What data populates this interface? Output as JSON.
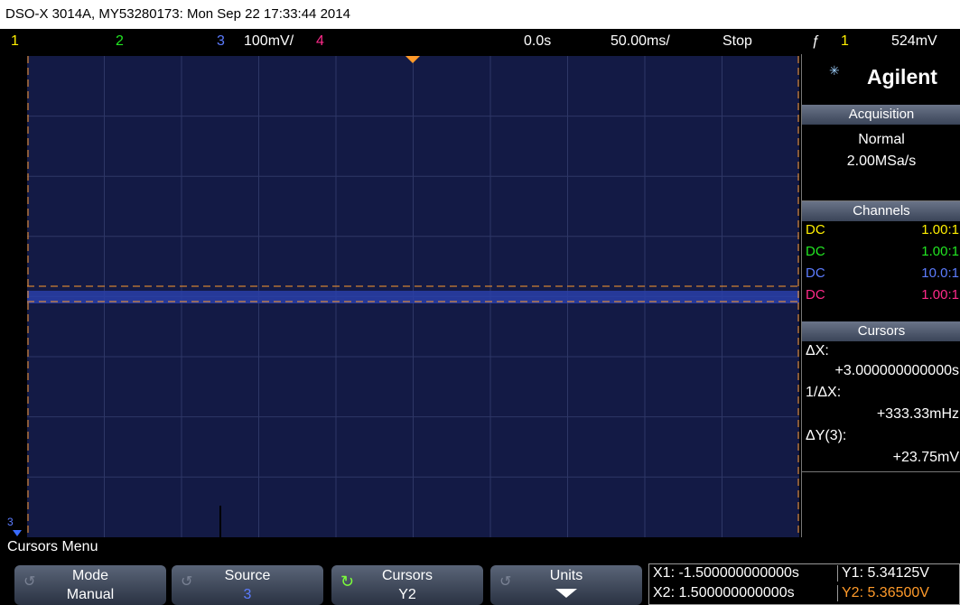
{
  "header": {
    "title": "DSO-X 3014A, MY53280173: Mon Sep 22 17:33:44 2014"
  },
  "status_bar": {
    "ch1": "1",
    "ch2": "2",
    "ch3": "3",
    "ch3_scale": "100mV/",
    "ch4": "4",
    "time_delay": "0.0s",
    "time_scale": "50.00ms/",
    "run_state": "Stop",
    "trigger_source": "1",
    "trigger_level": "524mV"
  },
  "side_panel": {
    "brand": "Agilent",
    "acquisition": {
      "title": "Acquisition",
      "mode": "Normal",
      "rate": "2.00MSa/s"
    },
    "channels": {
      "title": "Channels",
      "rows": [
        [
          "DC",
          "1.00:1"
        ],
        [
          "DC",
          "1.00:1"
        ],
        [
          "DC",
          "10.0:1"
        ],
        [
          "DC",
          "1.00:1"
        ]
      ]
    },
    "cursors": {
      "title": "Cursors",
      "dx_label": "ΔX:",
      "dx_value": "+3.000000000000s",
      "inv_dx_label": "1/ΔX:",
      "inv_dx_value": "+333.33mHz",
      "dy_label": "ΔY(3):",
      "dy_value": "+23.75mV"
    }
  },
  "ground_marker": "3",
  "menu": {
    "title": "Cursors Menu",
    "softkeys": [
      {
        "label": "Mode",
        "value": "Manual"
      },
      {
        "label": "Source",
        "value": "3"
      },
      {
        "label": "Cursors",
        "value": "Y2"
      },
      {
        "label": "Units"
      }
    ],
    "readouts": {
      "x1": "X1: -1.500000000000s",
      "x2": "X2: 1.500000000000s",
      "y1": "Y1: 5.34125V",
      "y2": "Y2: 5.36500V"
    }
  }
}
